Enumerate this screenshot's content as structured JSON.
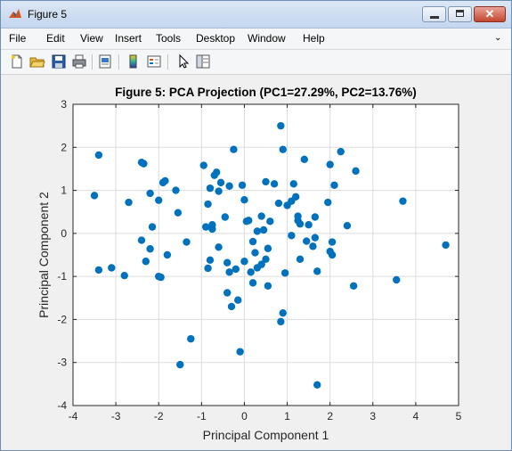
{
  "window": {
    "title": "Figure 5",
    "close_glyph": "✕"
  },
  "menu": {
    "items": [
      "File",
      "Edit",
      "View",
      "Insert",
      "Tools",
      "Desktop",
      "Window",
      "Help"
    ],
    "overflow_icon": "chevron-icon"
  },
  "toolbar": {
    "icons": [
      "new-figure-icon",
      "open-file-icon",
      "save-icon",
      "print-icon",
      "print-preview-icon",
      "colorbar-icon",
      "legend-icon",
      "pointer-icon",
      "property-editor-icon"
    ]
  },
  "colors": {
    "marker": "#0072bd",
    "axes_bg": "#ffffff",
    "figure_bg": "#f0f0f0",
    "grid": "#dcdcdc"
  },
  "chart_data": {
    "type": "scatter",
    "title": "Figure 5: PCA Projection (PC1=27.29%, PC2=13.76%)",
    "xlabel": "Principal Component 1",
    "ylabel": "Principal Component 2",
    "xlim": [
      -4,
      5
    ],
    "ylim": [
      -4,
      3
    ],
    "xticks": [
      -4,
      -3,
      -2,
      -1,
      0,
      1,
      2,
      3,
      4,
      5
    ],
    "yticks": [
      -4,
      -3,
      -2,
      -1,
      0,
      1,
      2,
      3
    ],
    "grid": true,
    "x": [
      -3.4,
      -3.5,
      -3.4,
      -3.1,
      -2.8,
      -2.7,
      -2.4,
      -2.35,
      -2.4,
      -2.3,
      -2.2,
      -2.2,
      -2.15,
      -2.0,
      -2.0,
      -1.95,
      -1.9,
      -1.85,
      -1.8,
      -1.6,
      -1.55,
      -1.5,
      -1.35,
      -1.25,
      -0.95,
      -0.9,
      -0.85,
      -0.85,
      -0.8,
      -0.8,
      -0.75,
      -0.75,
      -0.7,
      -0.65,
      -0.6,
      -0.6,
      -0.55,
      -0.45,
      -0.4,
      -0.4,
      -0.35,
      -0.35,
      -0.3,
      -0.25,
      -0.2,
      -0.15,
      -0.1,
      -0.05,
      0.0,
      0.0,
      0.05,
      0.1,
      0.15,
      0.2,
      0.2,
      0.25,
      0.3,
      0.3,
      0.4,
      0.4,
      0.45,
      0.5,
      0.5,
      0.55,
      0.55,
      0.6,
      0.7,
      0.8,
      0.85,
      0.85,
      0.9,
      0.9,
      0.95,
      1.0,
      1.1,
      1.1,
      1.15,
      1.2,
      1.25,
      1.25,
      1.3,
      1.3,
      1.4,
      1.45,
      1.5,
      1.6,
      1.65,
      1.65,
      1.7,
      1.7,
      1.95,
      2.0,
      2.0,
      2.05,
      2.05,
      2.1,
      2.25,
      2.4,
      2.55,
      2.6,
      3.55,
      3.7,
      4.7
    ],
    "y": [
      1.82,
      0.88,
      -0.85,
      -0.8,
      -0.98,
      0.72,
      1.65,
      1.62,
      -0.16,
      -0.65,
      0.93,
      -0.36,
      0.15,
      0.77,
      -1.0,
      -1.02,
      1.18,
      1.22,
      -0.5,
      1.0,
      0.48,
      -3.05,
      -0.2,
      -2.45,
      1.58,
      0.15,
      -0.81,
      0.68,
      1.05,
      -0.62,
      0.2,
      0.1,
      1.35,
      1.42,
      -0.32,
      0.98,
      1.18,
      0.38,
      -0.68,
      -1.38,
      1.1,
      -0.9,
      -1.7,
      1.95,
      -0.83,
      -1.55,
      -2.75,
      1.12,
      0.78,
      -0.65,
      0.28,
      0.3,
      -0.9,
      -0.19,
      -1.15,
      -0.45,
      -0.8,
      0.05,
      0.4,
      -0.72,
      0.08,
      -0.6,
      1.2,
      -1.22,
      -0.35,
      0.28,
      1.15,
      0.7,
      -2.05,
      2.5,
      -1.85,
      1.95,
      -0.92,
      0.65,
      0.75,
      -0.05,
      1.15,
      0.85,
      0.4,
      0.3,
      -0.6,
      0.22,
      1.72,
      -0.18,
      0.2,
      -0.3,
      -0.1,
      0.38,
      -0.88,
      -3.52,
      0.72,
      -0.42,
      1.6,
      -0.5,
      -0.2,
      1.12,
      1.9,
      0.18,
      -1.22,
      1.45,
      -1.08,
      0.75,
      -0.27
    ]
  }
}
